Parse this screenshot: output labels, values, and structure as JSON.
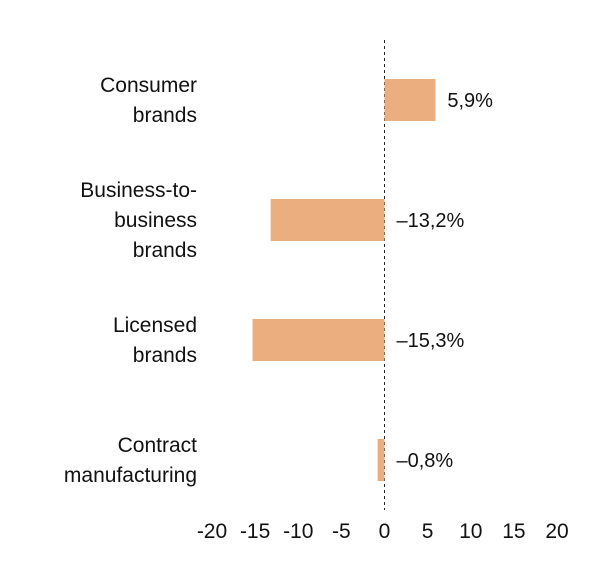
{
  "chart_data": {
    "type": "bar",
    "orientation": "horizontal",
    "title": "",
    "xlabel": "",
    "ylabel": "",
    "xlim": [
      -20,
      20
    ],
    "xticks": [
      -20,
      -15,
      -10,
      -5,
      0,
      5,
      10,
      15,
      20
    ],
    "xtick_labels": [
      "-20",
      "-15",
      "-10",
      "-5",
      "0",
      "5",
      "10",
      "15",
      "20"
    ],
    "grid": false,
    "zero_line": "dashed",
    "bar_color": "#EBAE7E",
    "categories": [
      [
        "Consumer",
        "brands"
      ],
      [
        "Business-to-",
        "business",
        "brands"
      ],
      [
        "Licensed",
        "brands"
      ],
      [
        "Contract",
        "manufacturing"
      ]
    ],
    "values": [
      5.9,
      -13.2,
      -15.3,
      -0.8
    ],
    "data_labels": [
      "5,9%",
      "–13,2%",
      "–15,3%",
      "–0,8%"
    ]
  }
}
